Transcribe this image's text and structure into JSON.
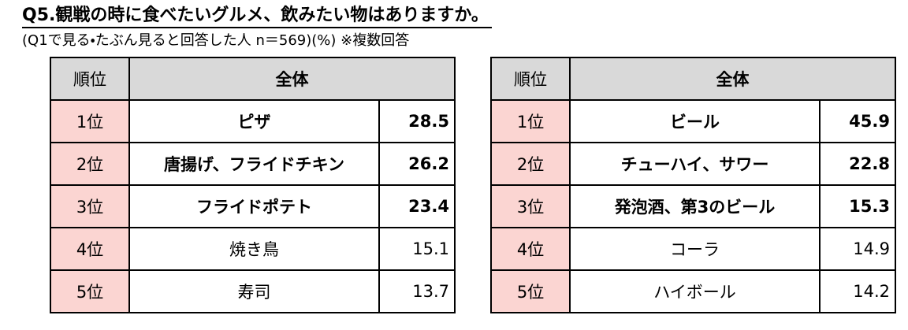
{
  "title": "Q5.観戦の時に食べたいグルメ、飲みたい物はありますか。",
  "subtitle": "(Q1で見る・たぶん見ると回答した人 n＝569)(%) ※複数回答",
  "tables": [
    {
      "header": [
        "順位",
        "全体"
      ],
      "rows": [
        [
          "1位",
          "ピザ",
          28.5
        ],
        [
          "2位",
          "唐揚げ、フライドチキン",
          26.2
        ],
        [
          "3位",
          "フライドポテト",
          23.4
        ],
        [
          "4位",
          "焼き鳥",
          15.1
        ],
        [
          "5位",
          "寿司",
          13.7
        ]
      ]
    },
    {
      "header": [
        "順位",
        "全体"
      ],
      "rows": [
        [
          "1位",
          "ビール",
          45.9
        ],
        [
          "2位",
          "チューハイ、サワー",
          22.8
        ],
        [
          "3位",
          "発泡酒、第3のビール",
          15.3
        ],
        [
          "4位",
          "コーラ",
          14.9
        ],
        [
          "5位",
          "ハイボール",
          14.2
        ]
      ]
    }
  ]
}
